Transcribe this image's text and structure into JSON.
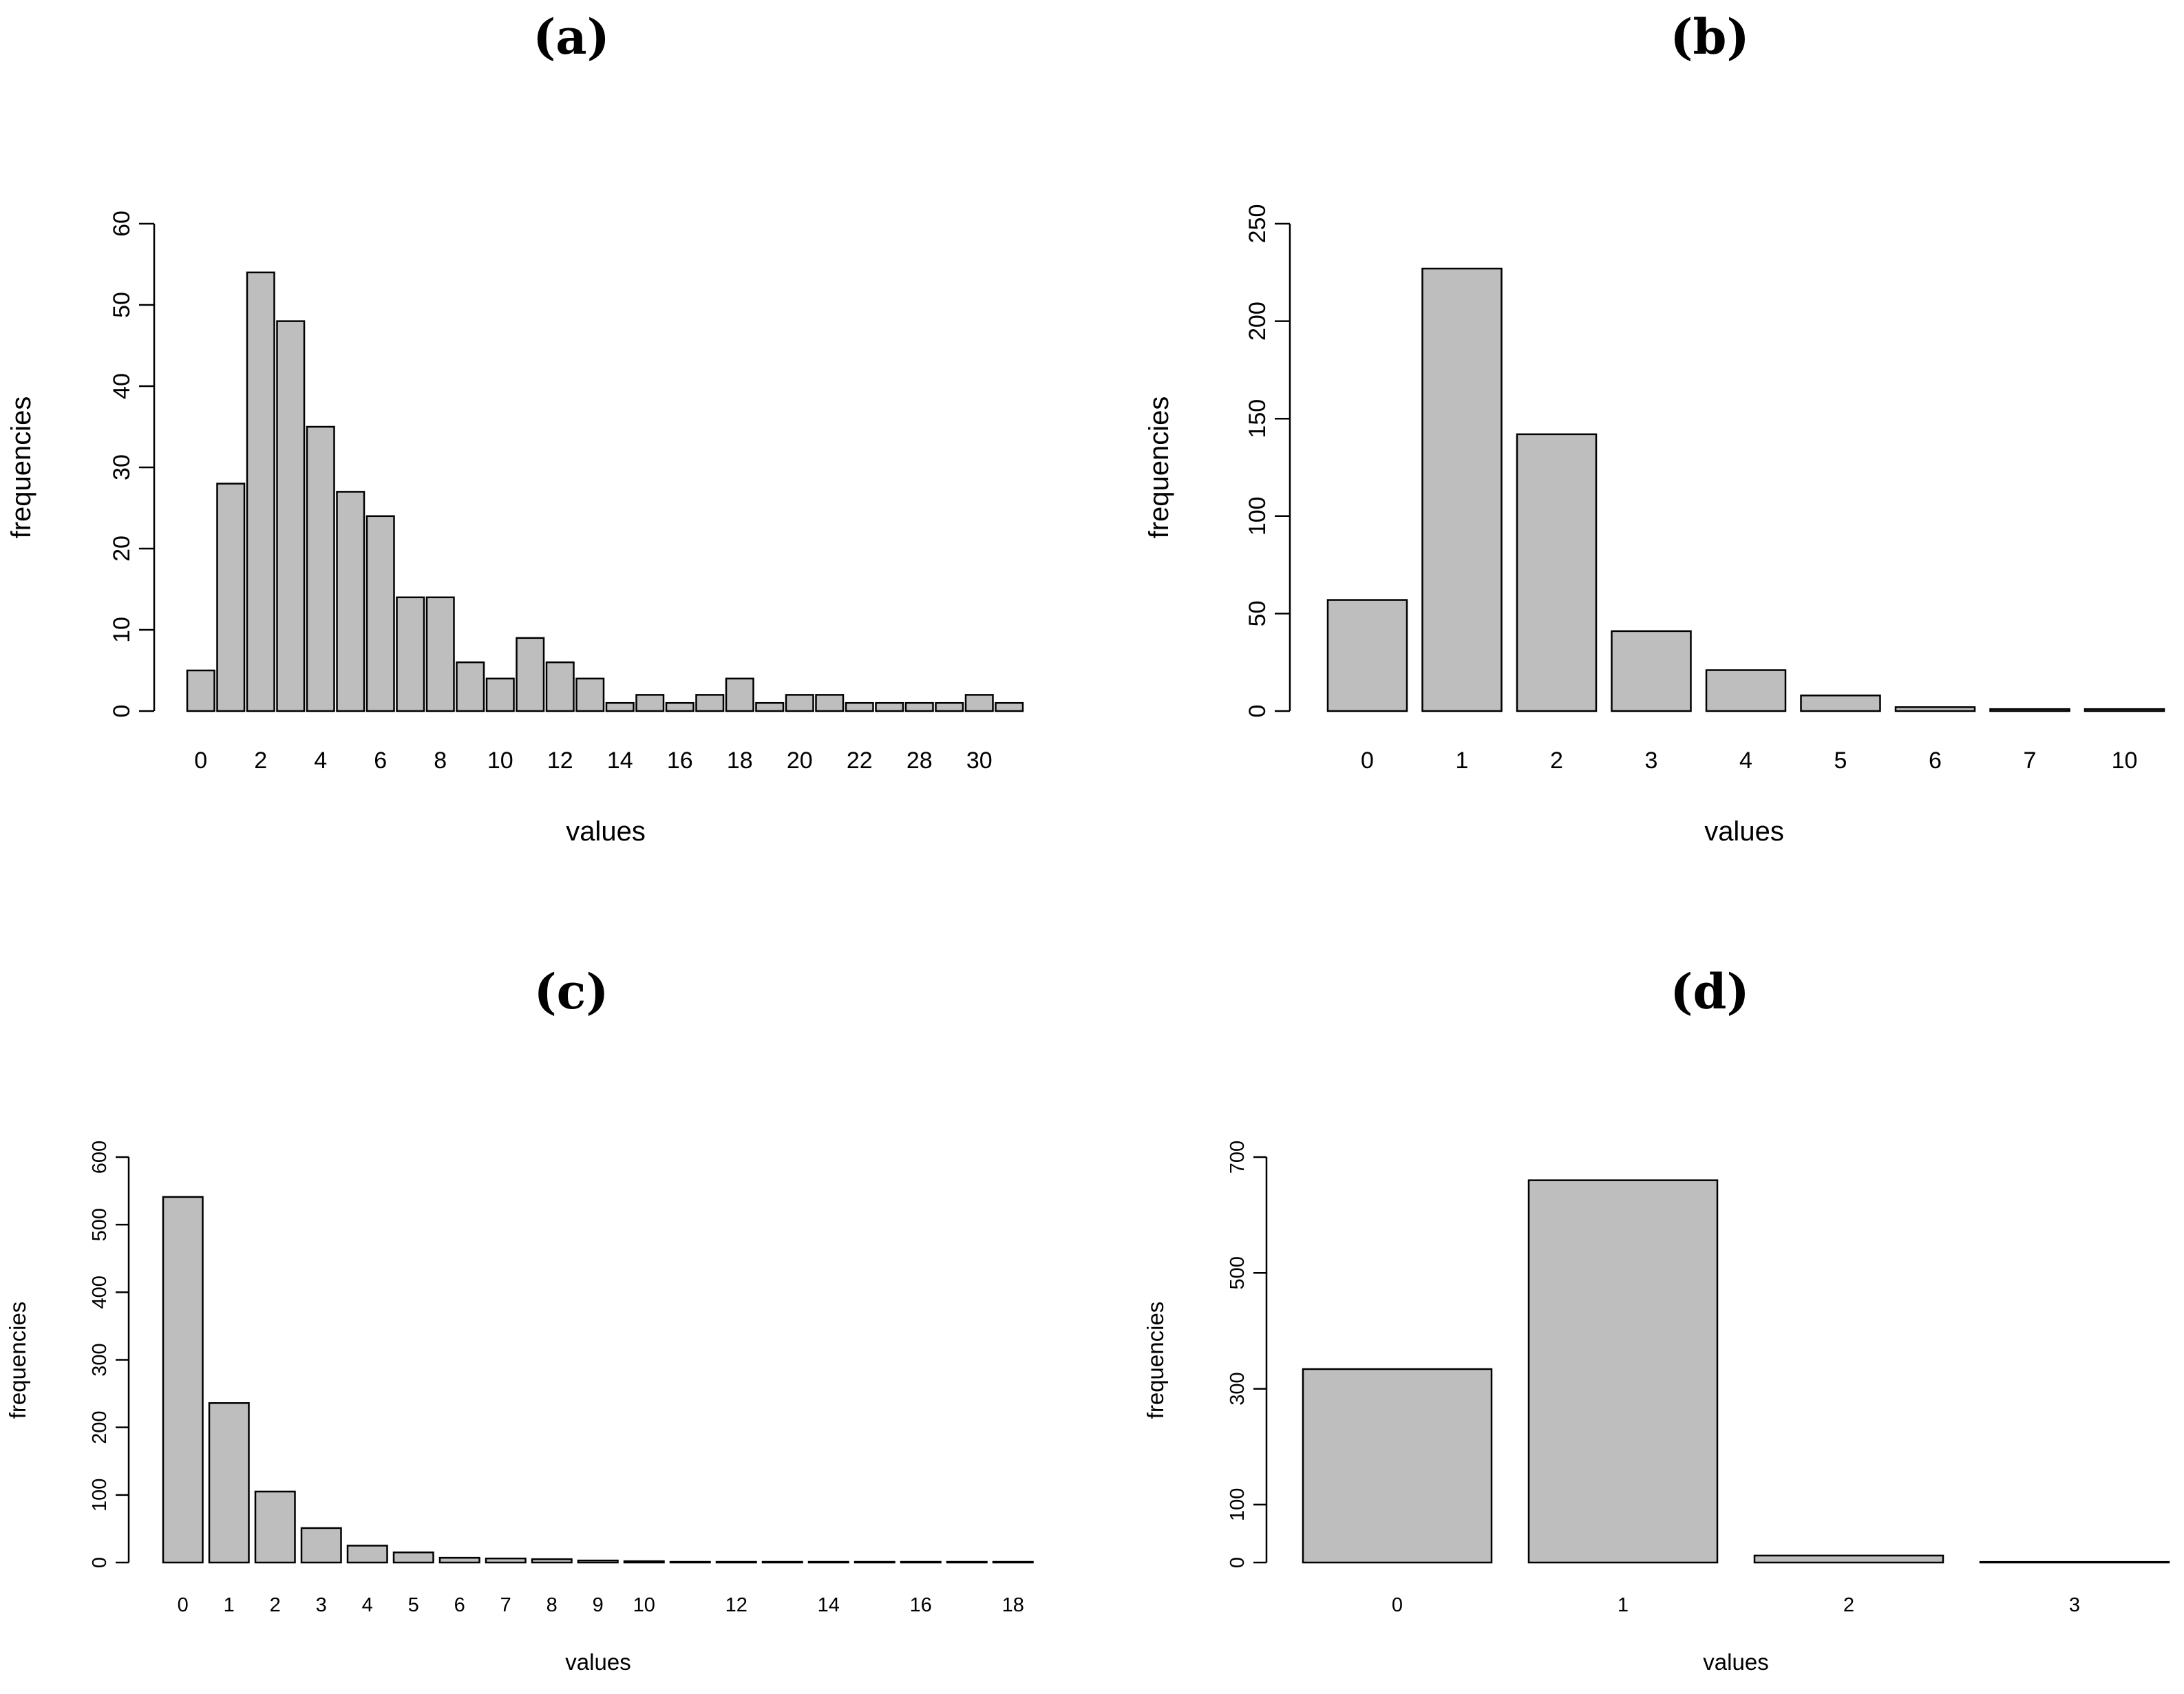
{
  "chart_data": [
    {
      "type": "bar",
      "title": "(a)",
      "xlabel": "values",
      "ylabel": "frequencies",
      "ylim": [
        0,
        60
      ],
      "yticks": [
        0,
        10,
        20,
        30,
        40,
        50,
        60
      ],
      "categories": [
        "0",
        "1",
        "2",
        "3",
        "4",
        "5",
        "6",
        "7",
        "8",
        "9",
        "10",
        "11",
        "12",
        "13",
        "14",
        "15",
        "16",
        "17",
        "18",
        "19",
        "20",
        "21",
        "22",
        "23",
        "28",
        "29",
        "30",
        "31"
      ],
      "xtick_labels": [
        "0",
        "2",
        "4",
        "6",
        "8",
        "10",
        "12",
        "14",
        "16",
        "18",
        "20",
        "22",
        "28",
        "30"
      ],
      "values": [
        5,
        28,
        54,
        48,
        35,
        27,
        24,
        14,
        14,
        6,
        4,
        9,
        6,
        4,
        1,
        2,
        1,
        2,
        4,
        1,
        2,
        2,
        1,
        1,
        1,
        1,
        2,
        1
      ]
    },
    {
      "type": "bar",
      "title": "(b)",
      "xlabel": "values",
      "ylabel": "frequencies",
      "ylim": [
        0,
        250
      ],
      "yticks": [
        0,
        50,
        100,
        150,
        200,
        250
      ],
      "categories": [
        "0",
        "1",
        "2",
        "3",
        "4",
        "5",
        "6",
        "7",
        "10"
      ],
      "xtick_labels": [
        "0",
        "1",
        "2",
        "3",
        "4",
        "5",
        "6",
        "7",
        "10"
      ],
      "values": [
        57,
        227,
        142,
        41,
        21,
        8,
        2,
        1,
        1
      ]
    },
    {
      "type": "bar",
      "title": "(c)",
      "xlabel": "values",
      "ylabel": "frequencies",
      "ylim": [
        0,
        600
      ],
      "yticks": [
        0,
        100,
        200,
        300,
        400,
        500,
        600
      ],
      "categories": [
        "0",
        "1",
        "2",
        "3",
        "4",
        "5",
        "6",
        "7",
        "8",
        "9",
        "10",
        "11",
        "12",
        "13",
        "14",
        "15",
        "16",
        "17",
        "18"
      ],
      "xtick_labels": [
        "0",
        "1",
        "2",
        "3",
        "4",
        "5",
        "6",
        "7",
        "8",
        "9",
        "10",
        "12",
        "14",
        "16",
        "18"
      ],
      "values": [
        541,
        236,
        105,
        51,
        25,
        15,
        7,
        6,
        5,
        3,
        2,
        1,
        1,
        1,
        1,
        1,
        1,
        1,
        1
      ]
    },
    {
      "type": "bar",
      "title": "(d)",
      "xlabel": "values",
      "ylabel": "frequencies",
      "ylim": [
        0,
        700
      ],
      "yticks": [
        0,
        100,
        300,
        500,
        700
      ],
      "categories": [
        "0",
        "1",
        "2",
        "3"
      ],
      "xtick_labels": [
        "0",
        "1",
        "2",
        "3"
      ],
      "values": [
        334,
        660,
        12,
        1
      ]
    }
  ],
  "colors": {
    "bar_fill": "#bebebe",
    "bar_stroke": "#000000",
    "axis": "#000000"
  }
}
